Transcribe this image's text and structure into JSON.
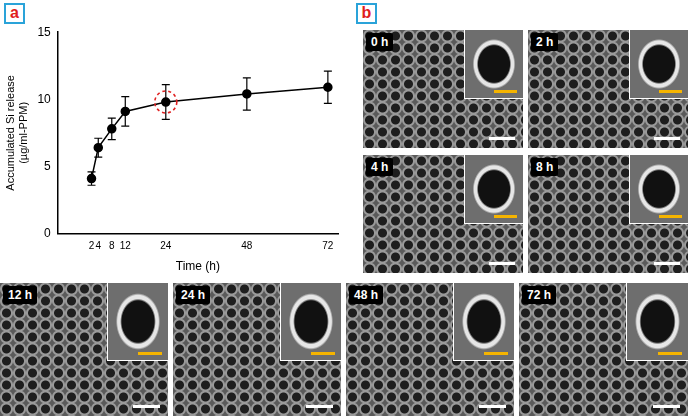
{
  "panel_labels": [
    "a",
    "b"
  ],
  "chart_data": {
    "type": "line",
    "x_label": "Time (h)",
    "y_label": [
      "Accumulated Si release",
      "(µg/ml-PPM)"
    ],
    "x": [
      2,
      4,
      8,
      12,
      24,
      48,
      72
    ],
    "values": [
      4.1,
      6.4,
      7.8,
      9.1,
      9.8,
      10.4,
      10.9
    ],
    "errors": [
      0.5,
      0.7,
      0.8,
      1.1,
      1.3,
      1.2,
      1.2
    ],
    "color": "#000000",
    "marker": "circle",
    "line_style": "solid",
    "xlim": [
      -8,
      75
    ],
    "xticks": [
      2,
      4,
      8,
      12,
      24,
      48,
      72
    ],
    "ylim": [
      0,
      15
    ],
    "yticks": [
      0,
      5,
      10,
      15
    ],
    "grid": false,
    "annotations": [
      {
        "x": 24,
        "y": 9.8,
        "marker": "circle",
        "line_style": "dashed",
        "color": "#e02020"
      }
    ]
  },
  "micrographs": {
    "labels": [
      "0 h",
      "2 h",
      "4 h",
      "8 h",
      "12 h",
      "24 h",
      "48 h",
      "72 h"
    ]
  }
}
